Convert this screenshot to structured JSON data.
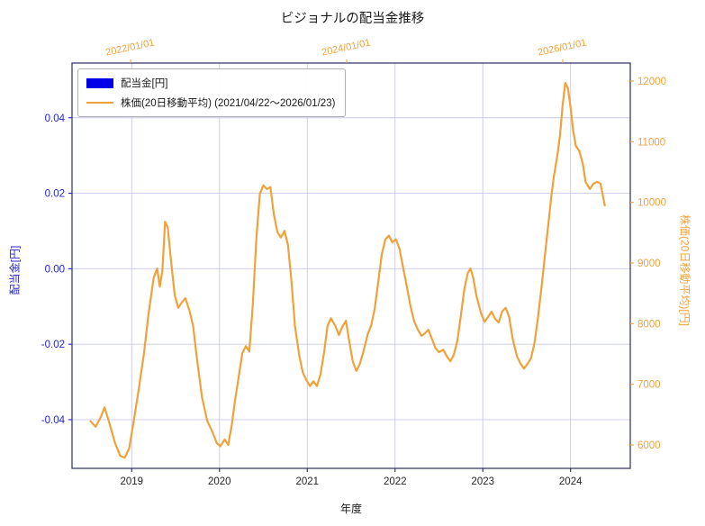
{
  "colors": {
    "orange": "#F0A23A",
    "blue": "#2424CF",
    "patch_blue": "#0000E6",
    "grid": "#C8C8EE",
    "spine": "#2B2B66",
    "tick_text_dark": "#262626"
  },
  "legend": {
    "items": [
      {
        "label": "配当金[円]",
        "marker": "patch",
        "color": "#0000E6"
      },
      {
        "label": "株価(20日移動平均) (2021/04/22～2026/01/23)",
        "marker": "line",
        "color": "#F0A23A"
      }
    ]
  },
  "chart_data": {
    "type": "line",
    "title": "ビジョナルの配当金推移",
    "xlabel": "年度",
    "ylabel_left": "配当金[円]",
    "ylabel_right": "株価(20日移動平均)[円]",
    "grid": true,
    "legend_position": "upper-left",
    "xlim_bottom": [
      2018.32,
      2024.68
    ],
    "xlim_top": [
      2021.458,
      2026.625
    ],
    "ylim_left": [
      -0.0529,
      0.0545
    ],
    "ylim_right": [
      5614,
      12297
    ],
    "x_ticks_bottom": [
      2019,
      2020,
      2021,
      2022,
      2023,
      2024
    ],
    "x_ticks_top": [
      {
        "value": 2022,
        "label": "2022/01/01"
      },
      {
        "value": 2024,
        "label": "2024/01/01"
      },
      {
        "value": 2026,
        "label": "2026/01/01"
      }
    ],
    "y_ticks_left": [
      0.04,
      0.02,
      0.0,
      -0.02,
      -0.04
    ],
    "y_ticks_right": [
      6000,
      7000,
      8000,
      9000,
      10000,
      11000,
      12000
    ],
    "series": [
      {
        "name": "株価(20日移動平均)",
        "color": "#F0A23A",
        "axis": "right",
        "x": [
          2018.53,
          2018.59,
          2018.65,
          2018.69,
          2018.74,
          2018.81,
          2018.87,
          2018.92,
          2018.97,
          2019.02,
          2019.08,
          2019.14,
          2019.19,
          2019.25,
          2019.29,
          2019.32,
          2019.35,
          2019.38,
          2019.41,
          2019.45,
          2019.49,
          2019.53,
          2019.57,
          2019.61,
          2019.66,
          2019.7,
          2019.74,
          2019.8,
          2019.86,
          2019.92,
          2019.97,
          2020.01,
          2020.06,
          2020.1,
          2020.14,
          2020.18,
          2020.22,
          2020.26,
          2020.3,
          2020.34,
          2020.38,
          2020.42,
          2020.46,
          2020.5,
          2020.54,
          2020.58,
          2020.62,
          2020.66,
          2020.7,
          2020.74,
          2020.78,
          2020.82,
          2020.86,
          2020.91,
          2020.95,
          2020.99,
          2021.03,
          2021.07,
          2021.11,
          2021.15,
          2021.19,
          2021.23,
          2021.27,
          2021.32,
          2021.36,
          2021.4,
          2021.44,
          2021.48,
          2021.52,
          2021.56,
          2021.6,
          2021.64,
          2021.69,
          2021.73,
          2021.77,
          2021.81,
          2021.85,
          2021.89,
          2021.93,
          2021.97,
          2022.01,
          2022.05,
          2022.09,
          2022.14,
          2022.18,
          2022.22,
          2022.26,
          2022.3,
          2022.34,
          2022.38,
          2022.42,
          2022.46,
          2022.5,
          2022.55,
          2022.59,
          2022.63,
          2022.67,
          2022.71,
          2022.75,
          2022.79,
          2022.83,
          2022.86,
          2022.89,
          2022.93,
          2022.98,
          2023.02,
          2023.06,
          2023.1,
          2023.14,
          2023.18,
          2023.22,
          2023.26,
          2023.3,
          2023.34,
          2023.39,
          2023.43,
          2023.47,
          2023.51,
          2023.55,
          2023.59,
          2023.63,
          2023.67,
          2023.71,
          2023.75,
          2023.78,
          2023.81,
          2023.85,
          2023.88,
          2023.91,
          2023.94,
          2023.97,
          2024.0,
          2024.03,
          2024.06,
          2024.1,
          2024.14,
          2024.17,
          2024.22,
          2024.26,
          2024.3,
          2024.34,
          2024.39
        ],
        "y": [
          6390,
          6300,
          6470,
          6620,
          6390,
          6030,
          5820,
          5790,
          5940,
          6360,
          6920,
          7510,
          8140,
          8760,
          8910,
          8610,
          8880,
          9680,
          9590,
          9000,
          8470,
          8260,
          8350,
          8420,
          8210,
          7960,
          7460,
          6790,
          6400,
          6210,
          6030,
          5980,
          6090,
          6000,
          6330,
          6760,
          7130,
          7510,
          7630,
          7540,
          8320,
          9400,
          10140,
          10280,
          10220,
          10250,
          9800,
          9510,
          9420,
          9530,
          9300,
          8700,
          7960,
          7460,
          7190,
          7070,
          6970,
          7050,
          6970,
          7160,
          7510,
          7960,
          8090,
          7960,
          7810,
          7950,
          8050,
          7690,
          7370,
          7220,
          7340,
          7540,
          7830,
          7980,
          8260,
          8700,
          9150,
          9390,
          9450,
          9340,
          9390,
          9240,
          8940,
          8570,
          8260,
          8030,
          7900,
          7800,
          7840,
          7900,
          7750,
          7600,
          7530,
          7570,
          7460,
          7380,
          7490,
          7720,
          8140,
          8580,
          8840,
          8910,
          8760,
          8440,
          8170,
          8030,
          8110,
          8200,
          8080,
          8020,
          8200,
          8260,
          8110,
          7750,
          7460,
          7340,
          7260,
          7340,
          7430,
          7690,
          8110,
          8610,
          9150,
          9680,
          10100,
          10430,
          10780,
          11110,
          11610,
          11970,
          11880,
          11560,
          11180,
          10930,
          10840,
          10630,
          10340,
          10220,
          10310,
          10340,
          10310,
          9950
        ]
      }
    ]
  }
}
